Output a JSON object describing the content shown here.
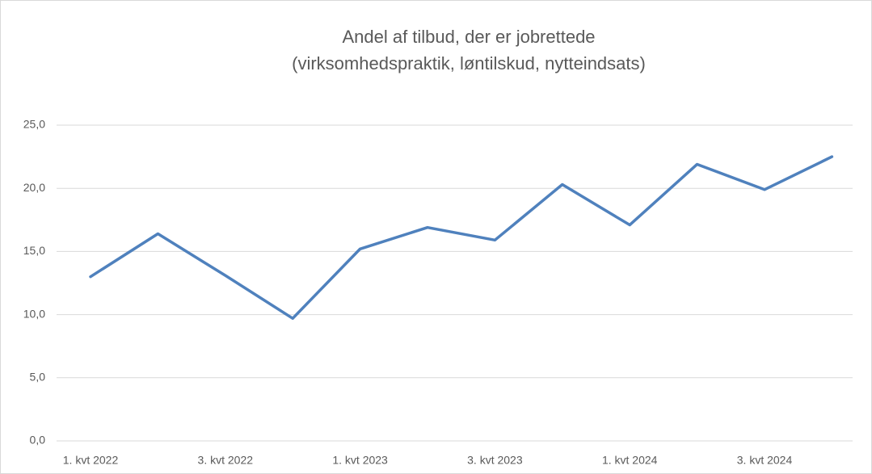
{
  "chart_data": {
    "type": "line",
    "title": [
      "Andel af tilbud, der er jobrettede",
      "(virksomhedspraktik, løntilskud, nytteindsats)"
    ],
    "categories": [
      "1. kvt 2022",
      null,
      "3. kvt 2022",
      null,
      "1. kvt 2023",
      null,
      "3. kvt 2023",
      null,
      "1. kvt 2024",
      null,
      "3. kvt 2024",
      null
    ],
    "series": [
      {
        "color": "#4f81bd",
        "values": [
          13.0,
          16.4,
          13.1,
          9.7,
          15.2,
          16.9,
          15.9,
          20.3,
          17.1,
          21.9,
          19.9,
          22.5
        ]
      }
    ],
    "ylim": [
      0,
      25
    ],
    "yticks": [
      {
        "value": 0,
        "label": "0,0"
      },
      {
        "value": 5,
        "label": "5,0"
      },
      {
        "value": 10,
        "label": "10,0"
      },
      {
        "value": 15,
        "label": "15,0"
      },
      {
        "value": 20,
        "label": "20,0"
      },
      {
        "value": 25,
        "label": "25,0"
      }
    ],
    "grid": true
  }
}
